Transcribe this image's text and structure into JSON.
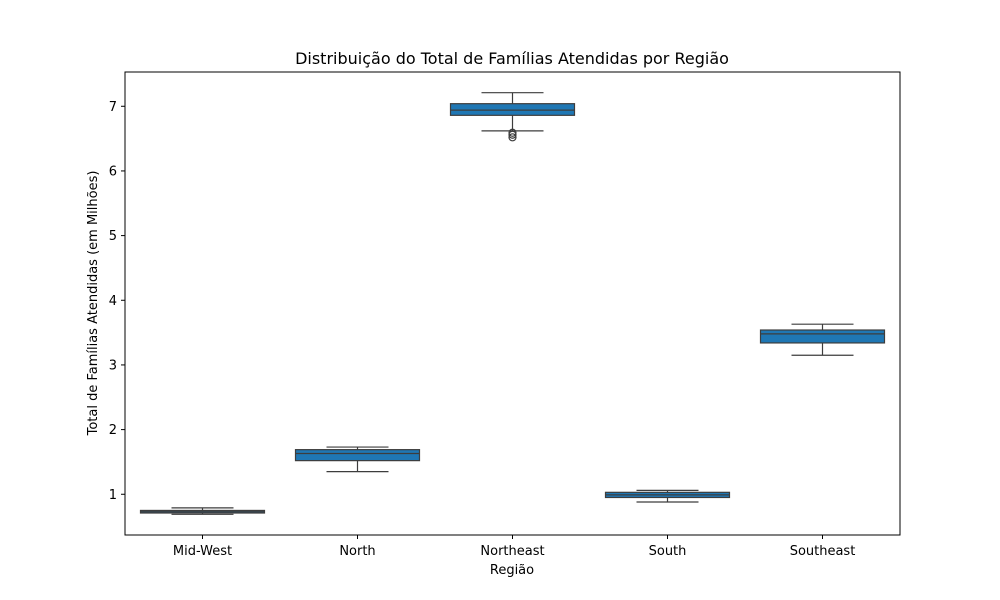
{
  "chart_data": {
    "type": "boxplot",
    "title": "Distribuição do Total de Famílias Atendidas por Região",
    "xlabel": "Região",
    "ylabel": "Total de Famílias Atendidas (em Milhões)",
    "ylim": [
      0.37,
      7.53
    ],
    "yticks": [
      "1",
      "2",
      "3",
      "4",
      "5",
      "6",
      "7"
    ],
    "grid": false,
    "box_color": "#1f77b4",
    "line_color": "#3d3d3d",
    "categories": [
      "Mid-West",
      "North",
      "Northeast",
      "South",
      "Southeast"
    ],
    "boxes": [
      {
        "whisker_low": 0.69,
        "q1": 0.71,
        "median": 0.73,
        "q3": 0.75,
        "whisker_high": 0.79,
        "outliers": []
      },
      {
        "whisker_low": 1.35,
        "q1": 1.52,
        "median": 1.63,
        "q3": 1.69,
        "whisker_high": 1.73,
        "outliers": []
      },
      {
        "whisker_low": 6.62,
        "q1": 6.86,
        "median": 6.94,
        "q3": 7.04,
        "whisker_high": 7.21,
        "outliers": [
          6.52,
          6.56,
          6.59
        ]
      },
      {
        "whisker_low": 0.88,
        "q1": 0.95,
        "median": 0.99,
        "q3": 1.03,
        "whisker_high": 1.06,
        "outliers": []
      },
      {
        "whisker_low": 3.15,
        "q1": 3.34,
        "median": 3.48,
        "q3": 3.54,
        "whisker_high": 3.63,
        "outliers": []
      }
    ]
  }
}
